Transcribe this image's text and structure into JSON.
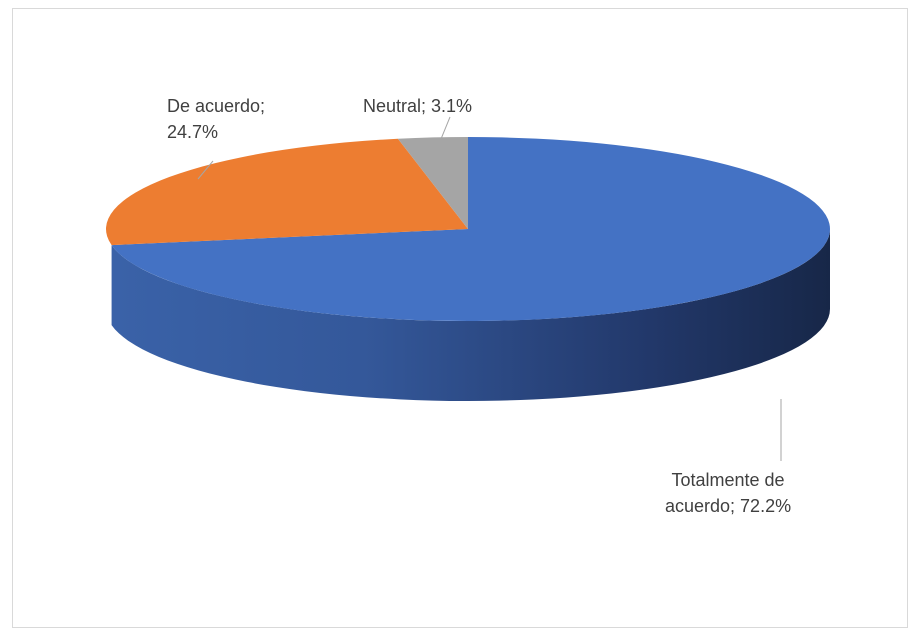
{
  "chart_data": {
    "type": "pie",
    "title": "",
    "three_d": true,
    "slices": [
      {
        "label": "Totalmente de acuerdo",
        "value": 72.2,
        "color": "#4472C4",
        "label_lines": [
          "Totalmente de",
          "acuerdo; 72.2%"
        ]
      },
      {
        "label": "De acuerdo",
        "value": 24.7,
        "color": "#ED7D31",
        "label_lines": [
          "De acuerdo;",
          "24.7%"
        ]
      },
      {
        "label": "Neutral",
        "value": 3.1,
        "color": "#A5A5A5",
        "label_lines": [
          "Neutral; 3.1%"
        ]
      }
    ]
  }
}
